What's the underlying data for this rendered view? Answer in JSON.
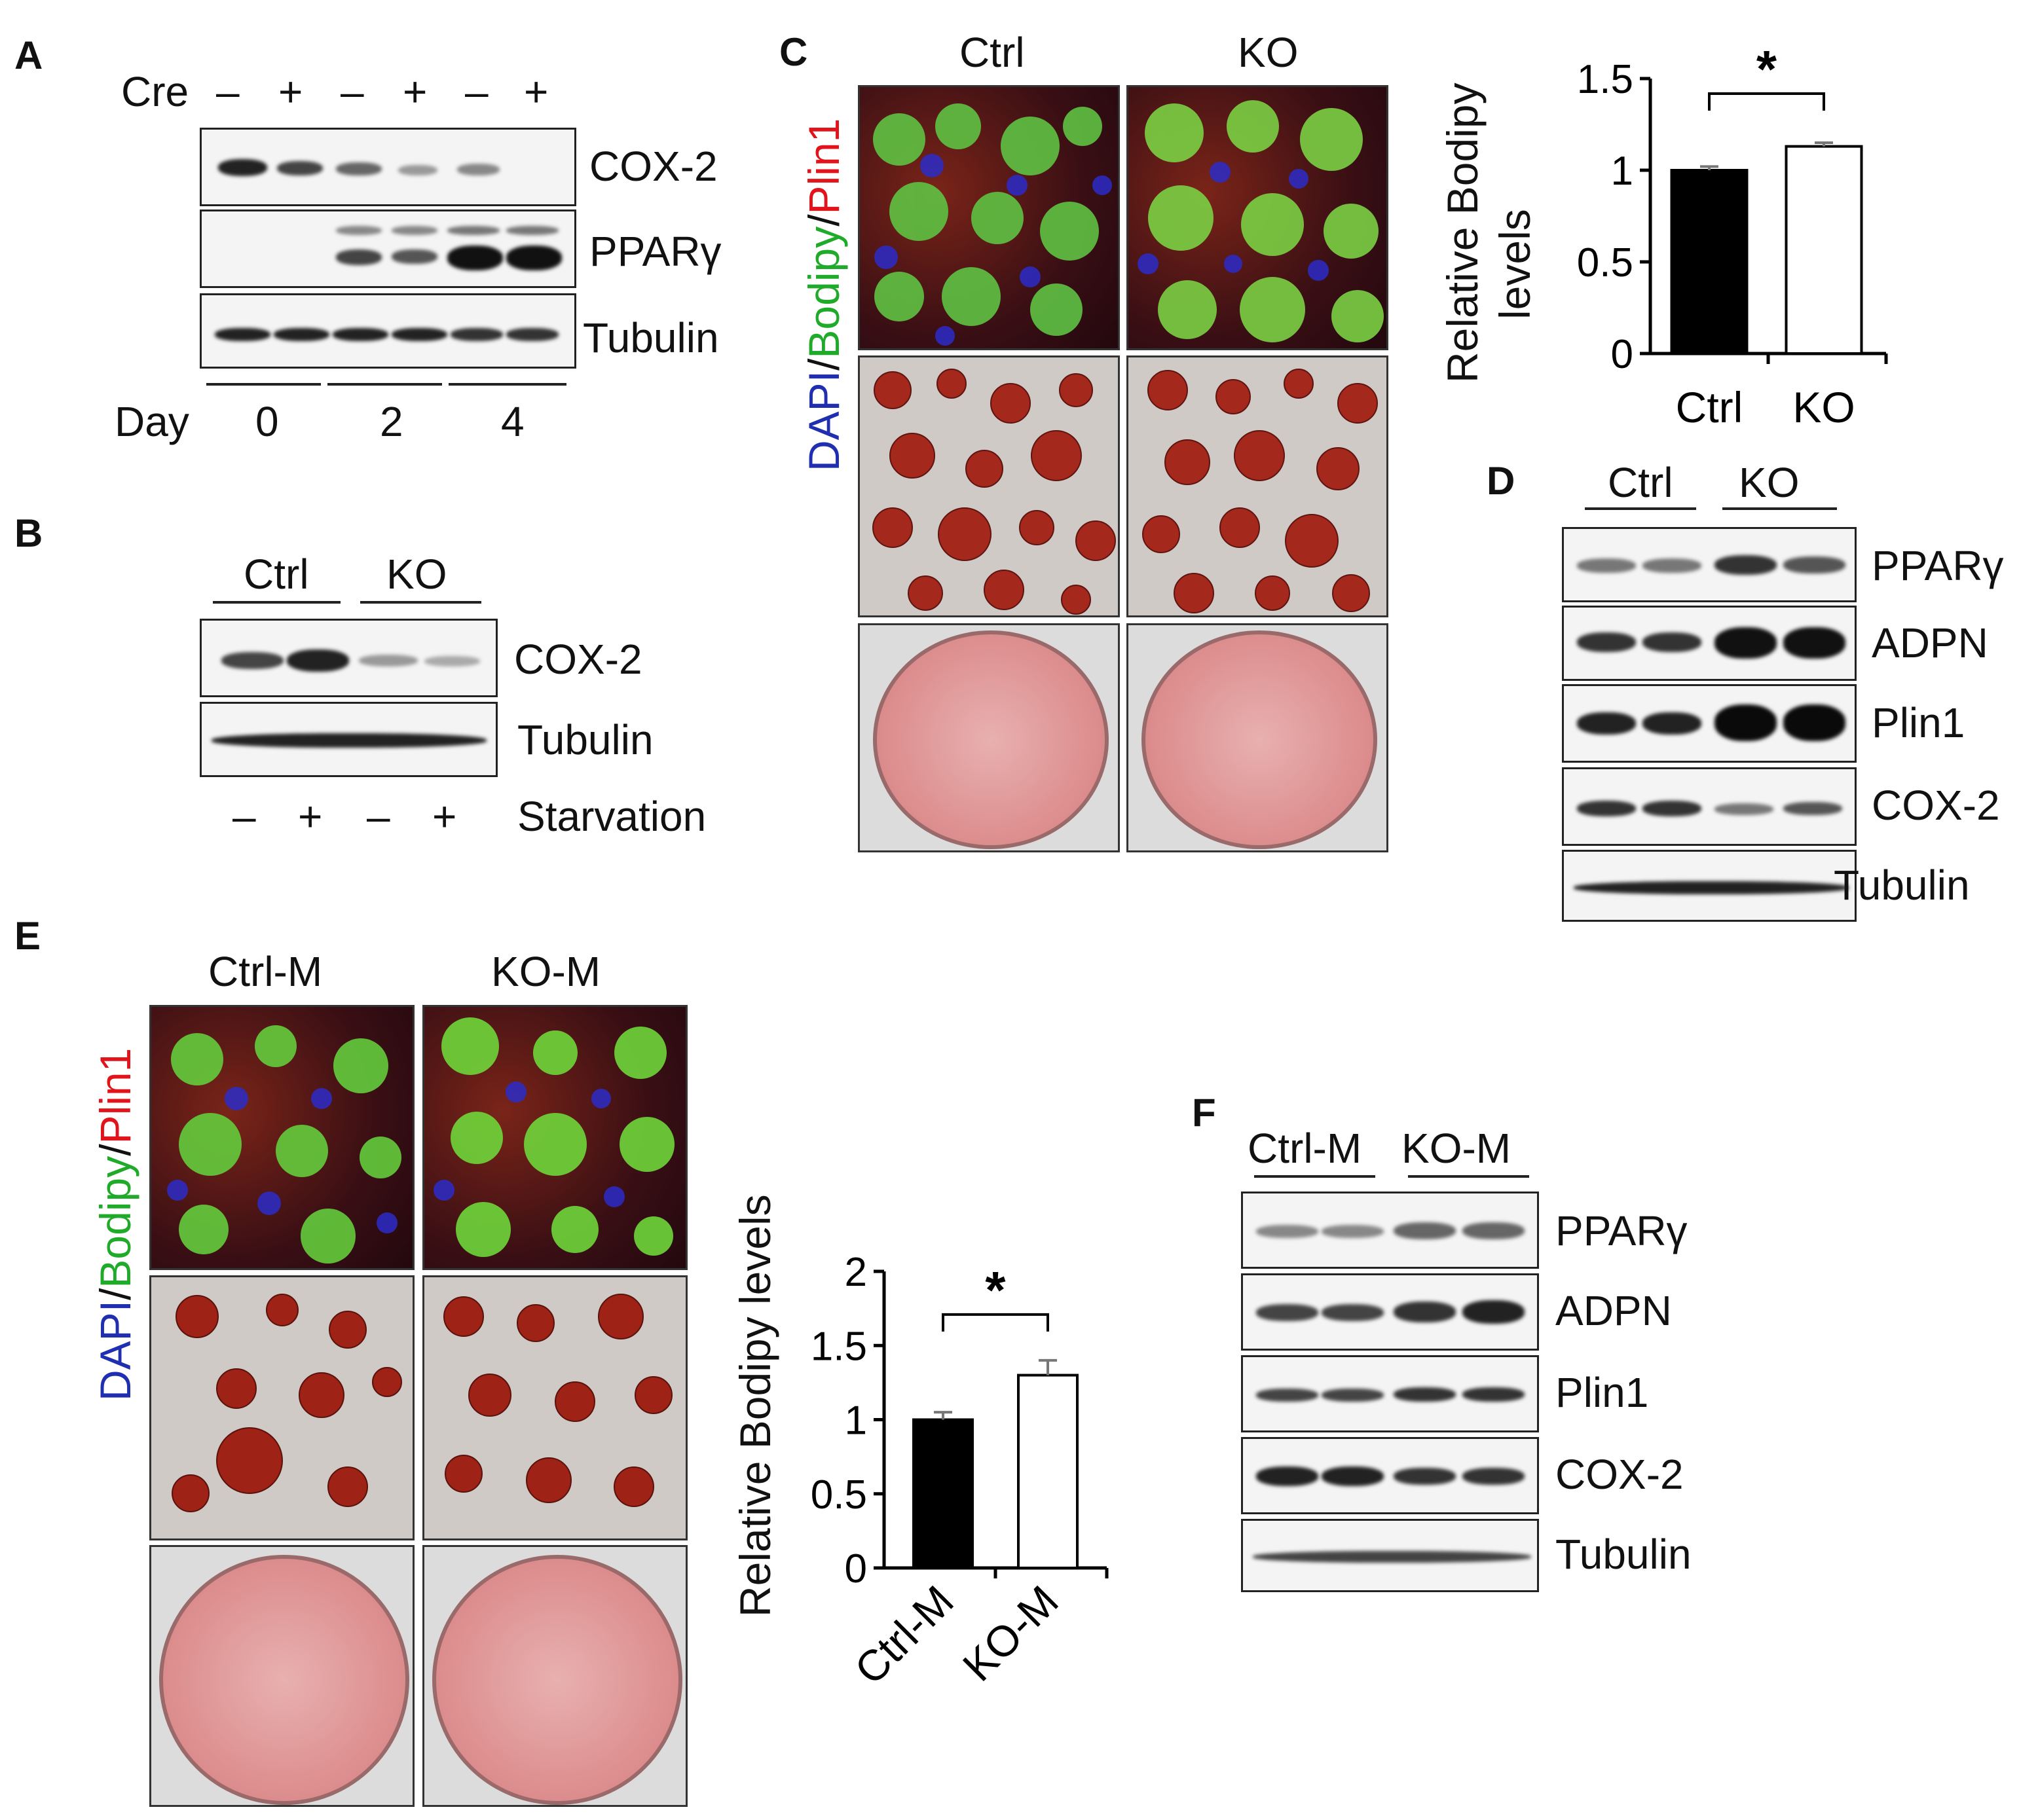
{
  "panel_labels": {
    "a": "A",
    "b": "B",
    "c": "C",
    "d": "D",
    "e": "E",
    "f": "F"
  },
  "panel_a": {
    "cre_label": "Cre",
    "cre_signs": [
      "–",
      "+",
      "–",
      "+",
      "–",
      "+"
    ],
    "blots": [
      "COX-2",
      "PPARγ",
      "Tubulin"
    ],
    "day_label": "Day",
    "days": [
      "0",
      "2",
      "4"
    ]
  },
  "panel_b": {
    "groups": [
      "Ctrl",
      "KO"
    ],
    "blots": [
      "COX-2",
      "Tubulin"
    ],
    "starv_signs": [
      "–",
      "+",
      "–",
      "+"
    ],
    "starv_label": "Starvation"
  },
  "panel_c": {
    "col_headers": [
      "Ctrl",
      "KO"
    ],
    "stain_label": {
      "dapi": "DAPI",
      "sep1": "/",
      "bodipy": "Bodipy",
      "sep2": "/",
      "plin1": "Plin1"
    }
  },
  "panel_d": {
    "groups": [
      "Ctrl",
      "KO"
    ],
    "blots": [
      "PPARγ",
      "ADPN",
      "Plin1",
      "COX-2",
      "Tubulin"
    ]
  },
  "panel_e": {
    "col_headers": [
      "Ctrl-M",
      "KO-M"
    ],
    "stain_label": {
      "dapi": "DAPI",
      "sep1": "/",
      "bodipy": "Bodipy",
      "sep2": "/",
      "plin1": "Plin1"
    }
  },
  "panel_f": {
    "groups": [
      "Ctrl-M",
      "KO-M"
    ],
    "blots": [
      "PPARγ",
      "ADPN",
      "Plin1",
      "COX-2",
      "Tubulin"
    ]
  },
  "chart_data": [
    {
      "type": "bar",
      "categories": [
        "Ctrl",
        "KO"
      ],
      "values": [
        1.0,
        1.13
      ],
      "errors": [
        0.02,
        0.02
      ],
      "fills": [
        "#000000",
        "#ffffff"
      ],
      "ylabel": "Relative Bodipy levels",
      "ylabel_lines": [
        "Relative Bodipy",
        "levels"
      ],
      "ylim": [
        0,
        1.5
      ],
      "yticks": [
        "0",
        "0.5",
        "1",
        "1.5"
      ],
      "significance": "*"
    },
    {
      "type": "bar",
      "categories": [
        "Ctrl-M",
        "KO-M"
      ],
      "values": [
        1.0,
        1.3
      ],
      "errors": [
        0.05,
        0.1
      ],
      "fills": [
        "#000000",
        "#ffffff"
      ],
      "ylabel": "Relative Bodipy levels",
      "ylim": [
        0,
        2
      ],
      "yticks": [
        "0",
        "0.5",
        "1",
        "1.5",
        "2"
      ],
      "significance": "*"
    }
  ]
}
